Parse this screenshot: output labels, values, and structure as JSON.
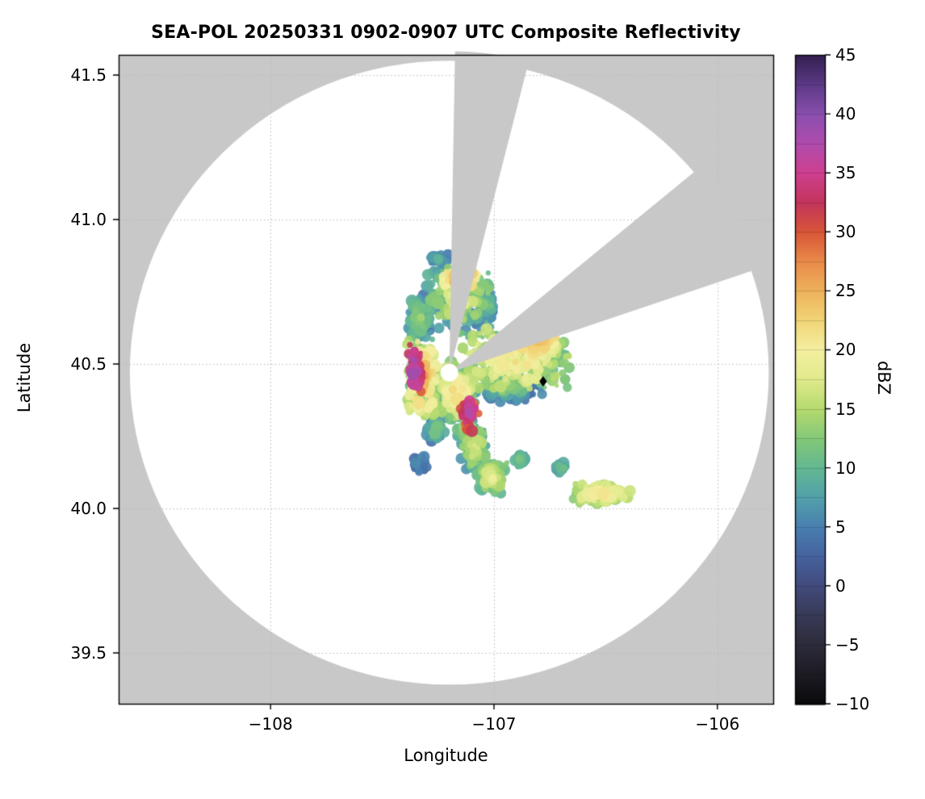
{
  "chart_data": {
    "type": "heatmap",
    "title": "SEA-POL 20250331 0902-0907 UTC Composite Reflectivity",
    "xlabel": "Longitude",
    "ylabel": "Latitude",
    "colorbar_label": "dBZ",
    "xlim": [
      -108.68,
      -105.75
    ],
    "ylim": [
      39.324,
      41.57
    ],
    "xticks": [
      -108,
      -107,
      -106
    ],
    "xtick_labels": [
      "−108",
      "−107",
      "−106"
    ],
    "yticks": [
      41.5,
      41.0,
      40.5,
      40.0,
      39.5
    ],
    "ytick_labels": [
      "41.5",
      "41.0",
      "40.5",
      "40.0",
      "39.5"
    ],
    "cbar_range": [
      -10,
      45
    ],
    "cbar_ticks": [
      -10,
      -5,
      0,
      5,
      10,
      15,
      20,
      25,
      30,
      35,
      40,
      45
    ],
    "cbar_tick_labels": [
      "−10",
      "−5",
      "0",
      "5",
      "10",
      "15",
      "20",
      "25",
      "30",
      "35",
      "40",
      "45"
    ],
    "grid": {
      "color": "#b8b8b8",
      "dash": [
        1.5,
        3
      ]
    },
    "background_outside": "#c8c8c8",
    "background_coverage": "#ffffff",
    "radar": {
      "lon": -107.2,
      "lat": 40.47,
      "range_deg_lon": 1.43,
      "range_deg_lat": 1.08,
      "center_hole_radius_px": 11
    },
    "blocked_sectors_deg": [
      [
        1,
        14
      ],
      [
        50,
        71
      ]
    ],
    "marker": {
      "lon": -106.78,
      "lat": 40.44,
      "shape": "diamond",
      "color": "#000000"
    },
    "colormap_stops": [
      [
        -10,
        "#0a0a0c"
      ],
      [
        -7.5,
        "#1c1b23"
      ],
      [
        -5,
        "#2c2b3a"
      ],
      [
        -2.5,
        "#383a56"
      ],
      [
        0,
        "#414a7c"
      ],
      [
        2.5,
        "#45629e"
      ],
      [
        5,
        "#497fb0"
      ],
      [
        7.5,
        "#52a1aa"
      ],
      [
        10,
        "#63b892"
      ],
      [
        12.5,
        "#84c878"
      ],
      [
        15,
        "#b5da6e"
      ],
      [
        17.5,
        "#e0ea8c"
      ],
      [
        20,
        "#f4efa1"
      ],
      [
        22.5,
        "#f1d577"
      ],
      [
        25,
        "#eeb25c"
      ],
      [
        27.5,
        "#e98b49"
      ],
      [
        30,
        "#d85638"
      ],
      [
        32.5,
        "#c3355c"
      ],
      [
        35,
        "#cf3f90"
      ],
      [
        37.5,
        "#b04cad"
      ],
      [
        40,
        "#8a4fae"
      ],
      [
        42.5,
        "#5c3a86"
      ],
      [
        45,
        "#332050"
      ]
    ],
    "echo_regions": [
      {
        "name": "north-main",
        "lon": -107.16,
        "lat": 40.73,
        "rx": 0.16,
        "ry": 0.13,
        "vmin": 2,
        "vmax": 20,
        "n": 320,
        "seed": 11
      },
      {
        "name": "north-top-warm",
        "lon": -107.14,
        "lat": 40.8,
        "rx": 0.09,
        "ry": 0.045,
        "vmin": 16,
        "vmax": 28,
        "n": 70,
        "seed": 12
      },
      {
        "name": "northwest-arm",
        "lon": -107.33,
        "lat": 40.66,
        "rx": 0.055,
        "ry": 0.085,
        "vmin": 2,
        "vmax": 15,
        "n": 110,
        "seed": 13
      },
      {
        "name": "west-band",
        "lon": -107.32,
        "lat": 40.45,
        "rx": 0.075,
        "ry": 0.155,
        "vmin": 6,
        "vmax": 28,
        "n": 260,
        "seed": 14
      },
      {
        "name": "west-purple-cores",
        "lon": -107.355,
        "lat": 40.48,
        "rx": 0.035,
        "ry": 0.09,
        "vmin": 28,
        "vmax": 41,
        "n": 55,
        "seed": 15
      },
      {
        "name": "central-south",
        "lon": -107.17,
        "lat": 40.4,
        "rx": 0.1,
        "ry": 0.11,
        "vmin": 4,
        "vmax": 24,
        "n": 240,
        "seed": 16
      },
      {
        "name": "central-purple-cores",
        "lon": -107.11,
        "lat": 40.33,
        "rx": 0.045,
        "ry": 0.075,
        "vmin": 26,
        "vmax": 39,
        "n": 45,
        "seed": 17
      },
      {
        "name": "east-lobe",
        "lon": -106.9,
        "lat": 40.52,
        "rx": 0.25,
        "ry": 0.12,
        "vmin": 8,
        "vmax": 23,
        "n": 420,
        "seed": 18
      },
      {
        "name": "east-lobe-warm",
        "lon": -106.82,
        "lat": 40.59,
        "rx": 0.11,
        "ry": 0.055,
        "vmin": 17,
        "vmax": 26,
        "n": 110,
        "seed": 19
      },
      {
        "name": "east-lobe-south-edge",
        "lon": -106.93,
        "lat": 40.41,
        "rx": 0.16,
        "ry": 0.045,
        "vmin": 1,
        "vmax": 11,
        "n": 110,
        "seed": 20
      },
      {
        "name": "south-mid",
        "lon": -107.09,
        "lat": 40.21,
        "rx": 0.065,
        "ry": 0.085,
        "vmin": 4,
        "vmax": 19,
        "n": 140,
        "seed": 21
      },
      {
        "name": "south-blob",
        "lon": -107.01,
        "lat": 40.11,
        "rx": 0.075,
        "ry": 0.06,
        "vmin": 6,
        "vmax": 20,
        "n": 130,
        "seed": 22
      },
      {
        "name": "southwest-specks",
        "lon": -107.26,
        "lat": 40.27,
        "rx": 0.05,
        "ry": 0.055,
        "vmin": 2,
        "vmax": 13,
        "n": 60,
        "seed": 23
      },
      {
        "name": "bridge",
        "lon": -107.12,
        "lat": 40.28,
        "rx": 0.05,
        "ry": 0.05,
        "vmin": 4,
        "vmax": 16,
        "n": 70,
        "seed": 27
      },
      {
        "name": "southeast-streak",
        "lon": -106.52,
        "lat": 40.05,
        "rx": 0.13,
        "ry": 0.04,
        "vmin": 10,
        "vmax": 22,
        "n": 150,
        "seed": 24
      },
      {
        "name": "southeast-speck",
        "lon": -106.7,
        "lat": 40.14,
        "rx": 0.028,
        "ry": 0.022,
        "vmin": 4,
        "vmax": 13,
        "n": 25,
        "seed": 25
      },
      {
        "name": "south-speck",
        "lon": -106.88,
        "lat": 40.17,
        "rx": 0.028,
        "ry": 0.028,
        "vmin": 4,
        "vmax": 13,
        "n": 25,
        "seed": 26
      },
      {
        "name": "north-edge-specks",
        "lon": -107.25,
        "lat": 40.86,
        "rx": 0.05,
        "ry": 0.025,
        "vmin": 2,
        "vmax": 10,
        "n": 30,
        "seed": 28
      },
      {
        "name": "northeast-of-center-specks",
        "lon": -107.03,
        "lat": 40.7,
        "rx": 0.04,
        "ry": 0.05,
        "vmin": 3,
        "vmax": 12,
        "n": 40,
        "seed": 30
      },
      {
        "name": "far-south-specks",
        "lon": -107.33,
        "lat": 40.16,
        "rx": 0.04,
        "ry": 0.05,
        "vmin": 1,
        "vmax": 8,
        "n": 20,
        "seed": 29
      }
    ]
  }
}
